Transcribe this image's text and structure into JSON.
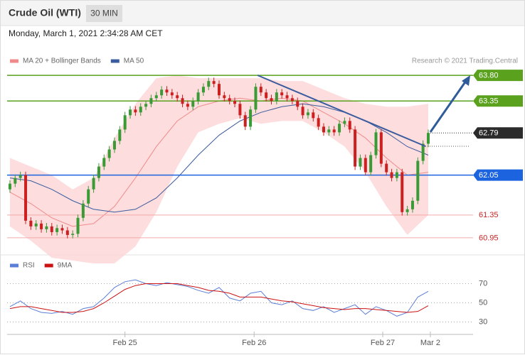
{
  "header": {
    "title": "Crude Oil (WTI)",
    "interval": "30 MIN",
    "timestamp": "Monday, March 1, 2021 2:34:28 AM CET",
    "credit": "Research © 2021 Trading.Central"
  },
  "chart_data": [
    {
      "type": "candlestick",
      "up_color": "#3a9a35",
      "down_color": "#cc2020",
      "xlim": [
        -0.54,
        88.57
      ],
      "ylim": [
        60.7,
        64.25
      ],
      "open": [
        61.8,
        61.9,
        62.0,
        62.05,
        61.25,
        61.15,
        61.2,
        61.1,
        61.15,
        61.05,
        61.12,
        61.08,
        61.0,
        61.02,
        61.3,
        61.55,
        61.8,
        62.0,
        62.2,
        62.35,
        62.5,
        62.65,
        62.85,
        63.1,
        63.2,
        63.15,
        63.25,
        63.3,
        63.4,
        63.45,
        63.55,
        63.5,
        63.45,
        63.4,
        63.3,
        63.25,
        63.35,
        63.5,
        63.6,
        63.7,
        63.65,
        63.45,
        63.4,
        63.35,
        63.3,
        63.1,
        62.9,
        63.2,
        63.6,
        63.5,
        63.4,
        63.35,
        63.5,
        63.45,
        63.4,
        63.35,
        63.25,
        63.1,
        63.15,
        63.05,
        62.9,
        62.8,
        62.85,
        62.8,
        62.95,
        63.0,
        62.85,
        62.2,
        62.35,
        62.1,
        62.4,
        62.8,
        62.25,
        62.1,
        62.0,
        62.1,
        61.4,
        61.45,
        61.6,
        62.3,
        62.6
      ],
      "high": [
        61.96,
        62.06,
        62.11,
        62.11,
        61.31,
        61.26,
        61.26,
        61.21,
        61.21,
        61.18,
        61.18,
        61.14,
        61.08,
        61.36,
        61.61,
        61.86,
        62.06,
        62.26,
        62.41,
        62.56,
        62.71,
        62.91,
        63.16,
        63.26,
        63.26,
        63.31,
        63.36,
        63.46,
        63.51,
        63.61,
        63.61,
        63.56,
        63.51,
        63.46,
        63.36,
        63.41,
        63.56,
        63.66,
        63.76,
        63.76,
        63.71,
        63.51,
        63.46,
        63.41,
        63.36,
        63.16,
        63.26,
        63.66,
        63.66,
        63.56,
        63.46,
        63.56,
        63.56,
        63.51,
        63.46,
        63.41,
        63.31,
        63.21,
        63.21,
        63.11,
        62.96,
        62.91,
        62.91,
        63.01,
        63.06,
        63.06,
        62.91,
        62.41,
        62.41,
        62.46,
        62.86,
        62.86,
        62.31,
        62.16,
        62.16,
        62.16,
        61.51,
        61.66,
        62.36,
        62.66,
        62.85
      ],
      "low": [
        61.74,
        61.84,
        61.94,
        61.19,
        61.09,
        61.09,
        61.04,
        61.04,
        60.99,
        60.99,
        61.02,
        60.94,
        60.94,
        60.96,
        61.24,
        61.49,
        61.74,
        61.94,
        62.14,
        62.29,
        62.44,
        62.59,
        62.79,
        63.04,
        63.09,
        63.09,
        63.19,
        63.24,
        63.34,
        63.39,
        63.44,
        63.39,
        63.34,
        63.24,
        63.19,
        63.19,
        63.29,
        63.44,
        63.54,
        63.59,
        63.39,
        63.34,
        63.29,
        63.24,
        63.04,
        62.84,
        62.84,
        63.14,
        63.44,
        63.34,
        63.29,
        63.29,
        63.39,
        63.34,
        63.29,
        63.19,
        63.04,
        63.04,
        62.99,
        62.84,
        62.74,
        62.74,
        62.74,
        62.74,
        62.89,
        62.79,
        62.14,
        62.14,
        62.04,
        62.04,
        62.34,
        62.19,
        62.04,
        61.94,
        61.94,
        61.34,
        61.34,
        61.39,
        61.54,
        62.24,
        62.54
      ],
      "close": [
        61.9,
        62.0,
        62.05,
        61.25,
        61.15,
        61.2,
        61.1,
        61.15,
        61.05,
        61.12,
        61.08,
        61.0,
        61.02,
        61.3,
        61.55,
        61.8,
        62.0,
        62.2,
        62.35,
        62.5,
        62.65,
        62.85,
        63.1,
        63.2,
        63.15,
        63.25,
        63.3,
        63.4,
        63.45,
        63.55,
        63.5,
        63.45,
        63.4,
        63.3,
        63.25,
        63.35,
        63.5,
        63.6,
        63.7,
        63.65,
        63.45,
        63.4,
        63.35,
        63.3,
        63.1,
        62.9,
        63.2,
        63.6,
        63.5,
        63.4,
        63.35,
        63.5,
        63.45,
        63.4,
        63.35,
        63.25,
        63.1,
        63.15,
        63.05,
        62.9,
        62.8,
        62.85,
        62.8,
        62.95,
        63.0,
        62.85,
        62.2,
        62.35,
        62.1,
        62.4,
        62.8,
        62.25,
        62.1,
        62.0,
        62.1,
        61.4,
        61.45,
        61.6,
        62.3,
        62.6,
        62.79
      ],
      "series": [
        {
          "name": "MA 20 + Bollinger Bands",
          "color": "#f08a8a",
          "band_color": "#fdd5d5",
          "x": [
            0,
            4,
            8,
            12,
            16,
            20,
            24,
            28,
            32,
            36,
            40,
            44,
            48,
            52,
            56,
            60,
            64,
            68,
            72,
            76,
            80
          ],
          "values": [
            61.75,
            61.55,
            61.3,
            61.15,
            61.2,
            61.5,
            62.0,
            62.55,
            63.0,
            63.25,
            63.35,
            63.4,
            63.35,
            63.4,
            63.35,
            63.15,
            62.95,
            62.7,
            62.35,
            62.05,
            62.1
          ],
          "upper": [
            62.35,
            62.2,
            62.05,
            61.8,
            62.0,
            62.7,
            63.3,
            63.75,
            63.8,
            63.75,
            63.75,
            63.75,
            63.75,
            63.7,
            63.7,
            63.55,
            63.4,
            63.3,
            63.25,
            63.25,
            63.3
          ],
          "lower": [
            61.15,
            60.9,
            60.6,
            60.55,
            60.5,
            60.5,
            60.8,
            61.4,
            62.2,
            62.8,
            62.95,
            63.05,
            62.95,
            63.0,
            63.0,
            62.8,
            62.55,
            62.1,
            61.5,
            61.0,
            61.35
          ]
        },
        {
          "name": "MA 50",
          "color": "#3a5b9e",
          "x": [
            0,
            4,
            8,
            12,
            16,
            20,
            24,
            28,
            32,
            36,
            40,
            44,
            48,
            52,
            56,
            60,
            64,
            68,
            72,
            76,
            80
          ],
          "values": [
            62.0,
            61.95,
            61.8,
            61.6,
            61.45,
            61.4,
            61.45,
            61.65,
            62.0,
            62.4,
            62.75,
            63.0,
            63.15,
            63.25,
            63.3,
            63.25,
            63.15,
            63.0,
            62.8,
            62.55,
            62.4
          ]
        }
      ],
      "levels": [
        {
          "value": 63.8,
          "label": "63.80",
          "color": "#5aa11e",
          "filled": true,
          "dotted": false
        },
        {
          "value": 63.35,
          "label": "63.35",
          "color": "#5aa11e",
          "filled": true,
          "dotted": false
        },
        {
          "value": 62.79,
          "label": "62.79",
          "color": "#2b2b2b",
          "filled": true,
          "dotted": true
        },
        {
          "value": 62.05,
          "label": "62.05",
          "color": "#1c63e0",
          "filled": true,
          "dotted": false
        },
        {
          "value": 61.35,
          "label": "61.35",
          "color": "#cc2222",
          "filled": false,
          "dotted": false
        },
        {
          "value": 60.95,
          "label": "60.95",
          "color": "#cc2222",
          "filled": false,
          "dotted": false
        }
      ]
    },
    {
      "type": "line",
      "xlim": [
        -0.54,
        88.57
      ],
      "ylim": [
        20,
        80
      ],
      "yticks": [
        30,
        50,
        70
      ],
      "xticks": [
        {
          "value": 22,
          "label": "Feb 25"
        },
        {
          "value": 46.7,
          "label": "Feb 26"
        },
        {
          "value": 71.3,
          "label": "Feb 27"
        },
        {
          "value": 80.4,
          "label": "Mar 2"
        }
      ],
      "series": [
        {
          "name": "RSI",
          "color": "#5b7fd6",
          "x": [
            0,
            2,
            4,
            6,
            8,
            10,
            12,
            14,
            16,
            18,
            20,
            22,
            24,
            26,
            28,
            30,
            32,
            34,
            36,
            38,
            40,
            42,
            44,
            46,
            48,
            50,
            52,
            54,
            56,
            58,
            60,
            62,
            64,
            66,
            68,
            70,
            72,
            74,
            76,
            78,
            80
          ],
          "values": [
            46,
            52,
            44,
            40,
            39,
            41,
            38,
            44,
            46,
            55,
            66,
            72,
            74,
            70,
            68,
            71,
            69,
            67,
            63,
            60,
            66,
            55,
            52,
            60,
            62,
            50,
            48,
            52,
            44,
            42,
            46,
            40,
            44,
            48,
            38,
            46,
            42,
            36,
            40,
            56,
            62
          ]
        },
        {
          "name": "9MA",
          "color": "#cc1111",
          "x": [
            0,
            2,
            4,
            6,
            8,
            10,
            12,
            14,
            16,
            18,
            20,
            22,
            24,
            26,
            28,
            30,
            32,
            34,
            36,
            38,
            40,
            42,
            44,
            46,
            48,
            50,
            52,
            54,
            56,
            58,
            60,
            62,
            64,
            66,
            68,
            70,
            72,
            74,
            76,
            78,
            80
          ],
          "values": [
            44,
            46,
            46,
            44,
            42,
            40,
            40,
            41,
            44,
            50,
            57,
            64,
            68,
            70,
            70,
            70,
            70,
            68,
            66,
            63,
            62,
            60,
            56,
            56,
            56,
            54,
            52,
            51,
            49,
            47,
            45,
            44,
            43,
            44,
            44,
            43,
            42,
            41,
            40,
            41,
            47
          ]
        }
      ]
    }
  ]
}
